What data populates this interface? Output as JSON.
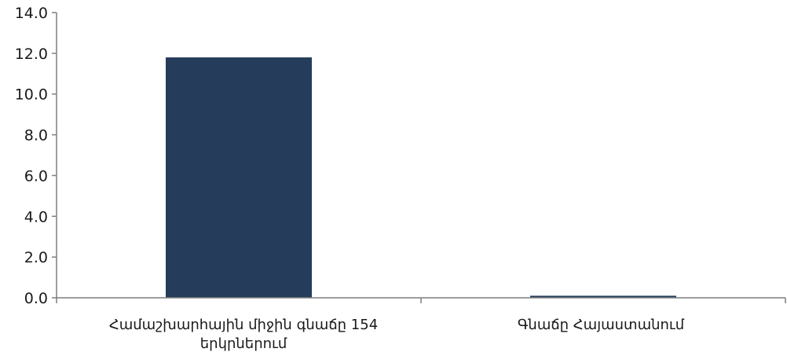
{
  "colors": {
    "bar": "#253d5b",
    "axis": "#7f7f7f",
    "text": "#1a1a1a"
  },
  "chart_data": {
    "type": "bar",
    "title": "",
    "xlabel": "",
    "ylabel": "",
    "categories": [
      "Համաշխարհային միջին գնաճը 154 երկրներում",
      "Գնաճը Հայաստանում"
    ],
    "values": [
      11.8,
      0.1
    ],
    "ylim": [
      0,
      14
    ],
    "yticks": [
      "0.0",
      "2.0",
      "4.0",
      "6.0",
      "8.0",
      "10.0",
      "12.0",
      "14.0"
    ],
    "grid": false,
    "legend": "none"
  }
}
